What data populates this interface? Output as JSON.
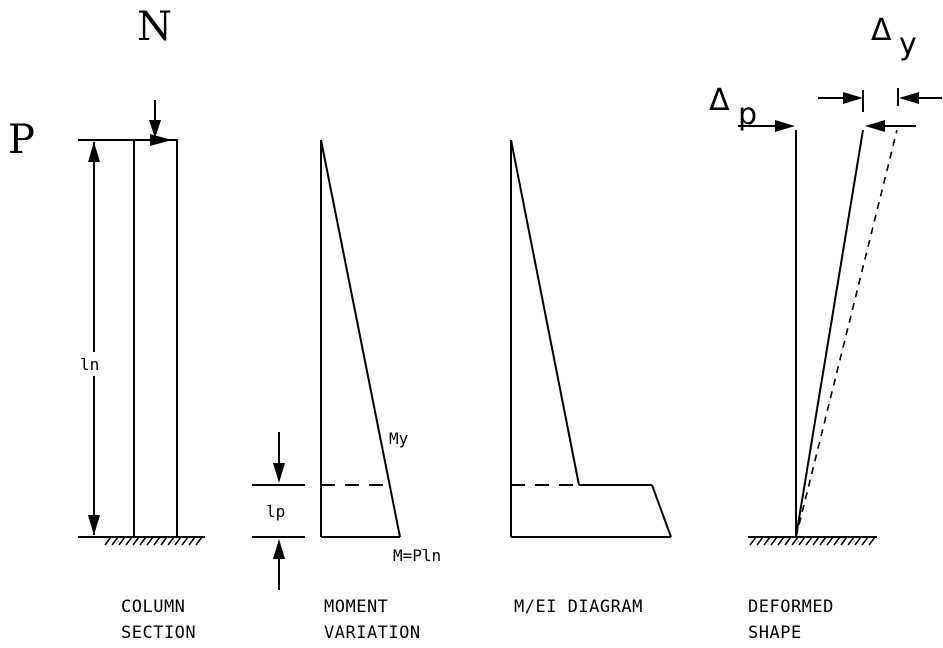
{
  "labels": {
    "load_P": "P",
    "load_N": "N",
    "length_ln": "ln",
    "length_lp": "lp",
    "moment_My": "My",
    "moment_M": "M=Pln",
    "delta_p": "p",
    "delta_y": "y",
    "delta_symbol": "Δ"
  },
  "captions": {
    "column_line1": "COLUMN",
    "column_line2": "SECTION",
    "moment_line1": "MOMENT",
    "moment_line2": "VARIATION",
    "mei_line1": "M/EI DIAGRAM",
    "deformed_line1": "DEFORMED",
    "deformed_line2": "SHAPE"
  }
}
